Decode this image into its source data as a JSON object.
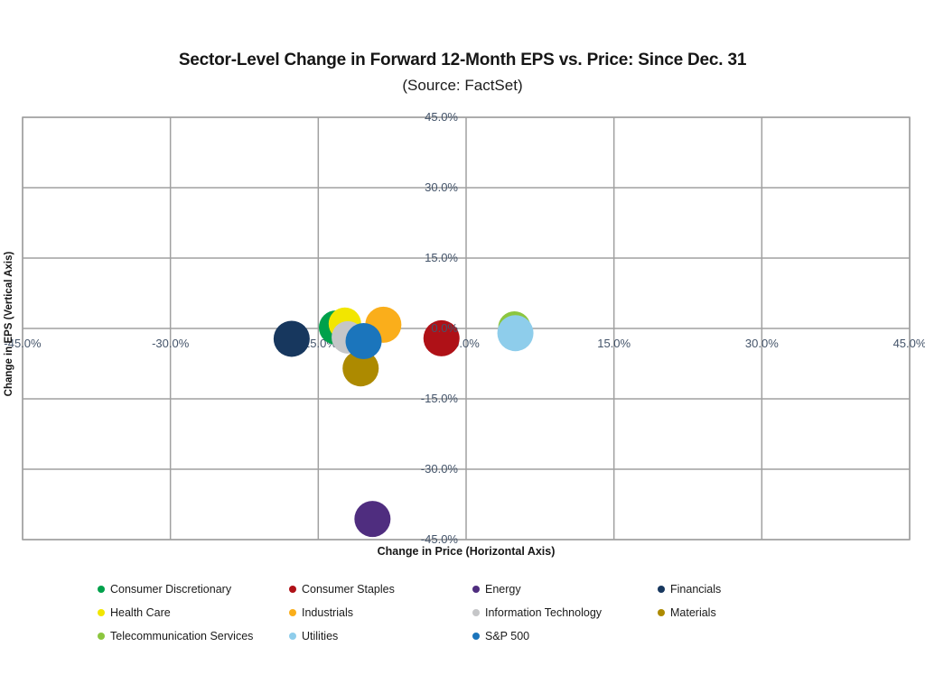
{
  "header": {
    "title": "Sector-Level Change in Forward 12-Month EPS vs. Price: Since Dec. 31",
    "subtitle": "(Source: FactSet)"
  },
  "chart_data": {
    "type": "scatter",
    "title": "Sector-Level Change in Forward 12-Month EPS vs. Price: Since Dec. 31",
    "subtitle": "(Source: FactSet)",
    "xlabel": "Change in Price  (Horizontal Axis)",
    "ylabel": "Change in EPS (Vertical Axis)",
    "xlim": [
      -45,
      45
    ],
    "ylim": [
      -45,
      45
    ],
    "x_ticks": [
      -45,
      -30,
      -15,
      0,
      15,
      30,
      45
    ],
    "y_ticks": [
      45,
      30,
      15,
      0,
      -15,
      -30,
      -45
    ],
    "tick_suffix": "%",
    "grid": true,
    "legend_position": "bottom",
    "series": [
      {
        "name": "Consumer Discretionary",
        "color": "#00A14B",
        "x": -13.2,
        "y": 0.2,
        "r": 19
      },
      {
        "name": "Consumer Staples",
        "color": "#AF1117",
        "x": -2.5,
        "y": -2.1,
        "r": 20
      },
      {
        "name": "Energy",
        "color": "#4F2D7F",
        "x": -9.5,
        "y": -40.6,
        "r": 20
      },
      {
        "name": "Financials",
        "color": "#17375E",
        "x": -17.7,
        "y": -2.2,
        "r": 20
      },
      {
        "name": "Health Care",
        "color": "#F2E600",
        "x": -12.3,
        "y": 1.0,
        "r": 18
      },
      {
        "name": "Industrials",
        "color": "#FAAE1B",
        "x": -8.4,
        "y": 0.8,
        "r": 20
      },
      {
        "name": "Information Technology",
        "color": "#C5C6C8",
        "x": -12.0,
        "y": -1.9,
        "r": 18
      },
      {
        "name": "Materials",
        "color": "#AD8A00",
        "x": -10.7,
        "y": -8.5,
        "r": 20
      },
      {
        "name": "Telecommunication Services",
        "color": "#8CC63F",
        "x": 4.9,
        "y": 0.2,
        "r": 18
      },
      {
        "name": "Utilities",
        "color": "#8ECDEB",
        "x": 5.0,
        "y": -1.0,
        "r": 20
      },
      {
        "name": "S&P 500",
        "color": "#1B75BC",
        "x": -10.4,
        "y": -2.7,
        "r": 20
      }
    ]
  },
  "colors": {
    "gridline": "#A0A0A0",
    "tick_label": "#44546A",
    "background": "#FFFFFF"
  }
}
